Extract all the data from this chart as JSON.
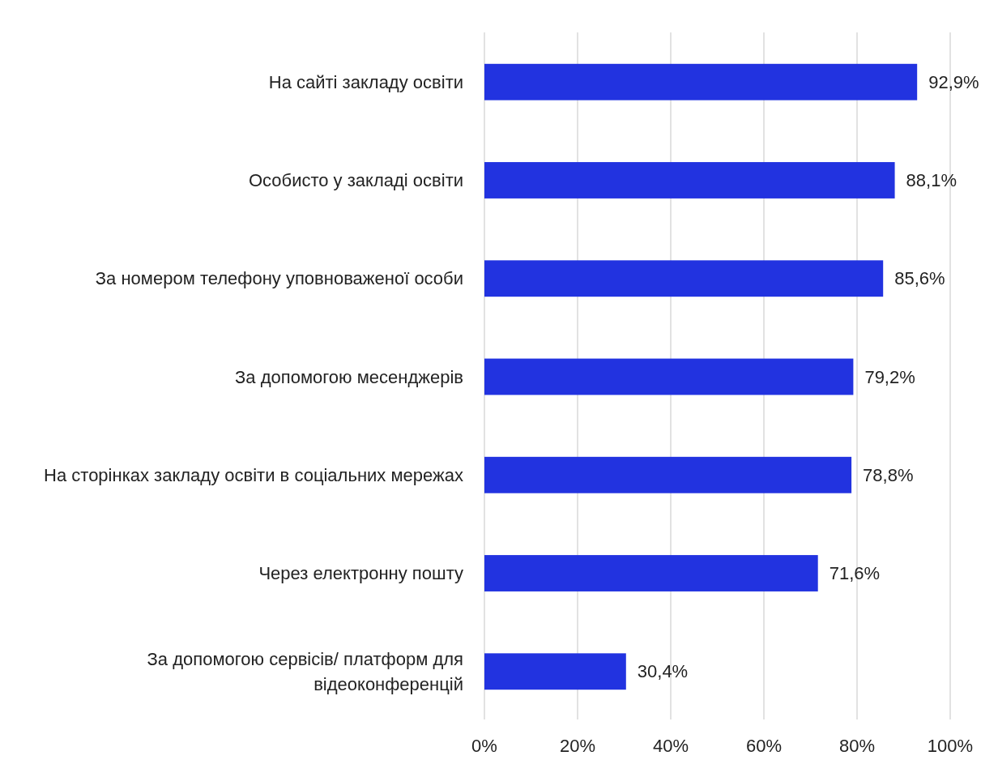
{
  "chart_data": {
    "type": "bar",
    "orientation": "horizontal",
    "categories": [
      "На сайті закладу освіти",
      "Особисто у закладі освіти",
      "За номером телефону уповноваженої особи",
      "За допомогою месенджерів",
      "На сторінках закладу освіти в соціальних мережах",
      "Через електронну пошту",
      "За допомогою сервісів/ платформ для відеоконференцій"
    ],
    "values": [
      92.9,
      88.1,
      85.6,
      79.2,
      78.8,
      71.6,
      30.4
    ],
    "value_labels": [
      "92,9%",
      "88,1%",
      "85,6%",
      "79,2%",
      "78,8%",
      "71,6%",
      "30,4%"
    ],
    "color": "#2233e0",
    "xlim": [
      0,
      100
    ],
    "xticks": [
      {
        "value": 0,
        "label": "0%"
      },
      {
        "value": 20,
        "label": "20%"
      },
      {
        "value": 40,
        "label": "40%"
      },
      {
        "value": 60,
        "label": "60%"
      },
      {
        "value": 80,
        "label": "80%"
      },
      {
        "value": 100,
        "label": "100%"
      }
    ],
    "grid": "x"
  }
}
